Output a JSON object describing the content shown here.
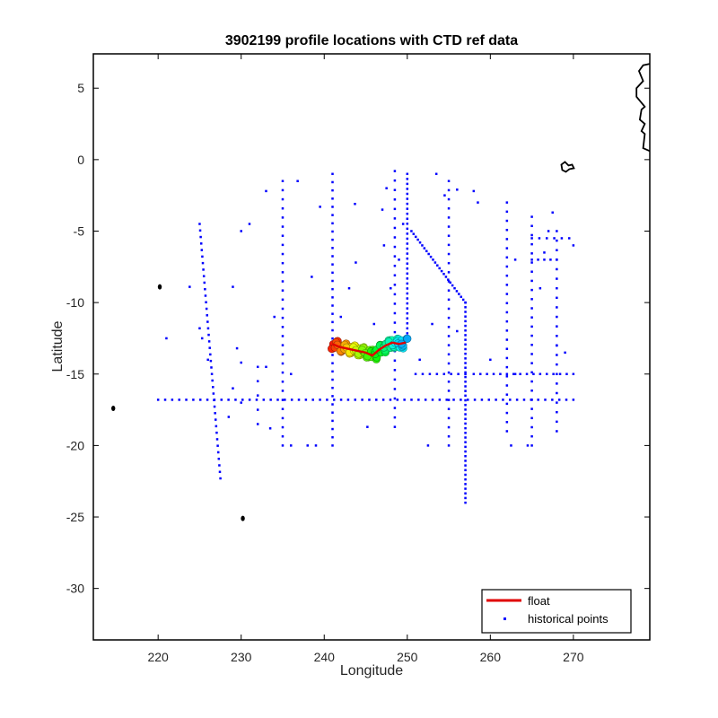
{
  "chart_data": {
    "type": "scatter",
    "title": "3902199 profile locations with CTD ref data",
    "xlabel": "Longitude",
    "ylabel": "Latitude",
    "xlim": [
      212.2,
      279.2
    ],
    "ylim": [
      -33.6,
      7.4
    ],
    "xticks": [
      220,
      230,
      240,
      250,
      260,
      270
    ],
    "yticks": [
      5,
      0,
      -5,
      -10,
      -15,
      -20,
      -25,
      -30
    ],
    "grid": false,
    "legend": {
      "placement": "bottom-right",
      "entries": [
        {
          "label": "float",
          "color": "#e00000",
          "marker": "line"
        },
        {
          "label": "historical points",
          "color": "#0000ff",
          "marker": "dot"
        }
      ]
    },
    "colors": {
      "float_track": "#e00000",
      "historical": "#0000ff",
      "coast": "#000000"
    },
    "series": [
      {
        "name": "historical points",
        "lines": [
          {
            "from": [
              220,
              -16.8
            ],
            "to": [
              270,
              -16.8
            ],
            "n": 60
          },
          {
            "from": [
              225,
              -4.5
            ],
            "to": [
              227.5,
              -22.3
            ],
            "n": 40
          },
          {
            "from": [
              235,
              -1.5
            ],
            "to": [
              235,
              -20
            ],
            "n": 30
          },
          {
            "from": [
              241,
              -1
            ],
            "to": [
              241,
              -20
            ],
            "n": 34
          },
          {
            "from": [
              248.5,
              -0.8
            ],
            "to": [
              248.5,
              -18.7
            ],
            "n": 28
          },
          {
            "from": [
              250,
              -1
            ],
            "to": [
              250,
              -12.5
            ],
            "n": 34
          },
          {
            "from": [
              250.5,
              -5
            ],
            "to": [
              257,
              -10
            ],
            "n": 26
          },
          {
            "from": [
              257,
              -10
            ],
            "to": [
              257,
              -24
            ],
            "n": 44
          },
          {
            "from": [
              255,
              -1.5
            ],
            "to": [
              255,
              -20
            ],
            "n": 30
          },
          {
            "from": [
              262,
              -3
            ],
            "to": [
              262,
              -19
            ],
            "n": 26
          },
          {
            "from": [
              265,
              -4
            ],
            "to": [
              265,
              -20
            ],
            "n": 26
          },
          {
            "from": [
              268,
              -5
            ],
            "to": [
              268,
              -19
            ],
            "n": 22
          },
          {
            "from": [
              258,
              -15
            ],
            "to": [
              270,
              -15
            ],
            "n": 16
          },
          {
            "from": [
              251,
              -15
            ],
            "to": [
              257,
              -15
            ],
            "n": 8
          },
          {
            "from": [
              232,
              -14.5
            ],
            "to": [
              232,
              -18.5
            ],
            "n": 5
          },
          {
            "from": [
              265,
              -7
            ],
            "to": [
              268,
              -7
            ],
            "n": 5
          },
          {
            "from": [
              265,
              -5.5
            ],
            "to": [
              269.5,
              -5.5
            ],
            "n": 6
          }
        ],
        "points": [
          [
            223.8,
            -8.9
          ],
          [
            221,
            -12.5
          ],
          [
            229,
            -8.9
          ],
          [
            230,
            -5
          ],
          [
            229.5,
            -13.2
          ],
          [
            229,
            -16
          ],
          [
            230,
            -14.2
          ],
          [
            230,
            -17
          ],
          [
            228.5,
            -18
          ],
          [
            233,
            -2.2
          ],
          [
            233,
            -14.5
          ],
          [
            233.5,
            -18.8
          ],
          [
            236,
            -15
          ],
          [
            236,
            -20
          ],
          [
            238,
            -20
          ],
          [
            239,
            -20
          ],
          [
            236.8,
            -1.5
          ],
          [
            238.5,
            -8.2
          ],
          [
            243.8,
            -7.2
          ],
          [
            243.7,
            -3.1
          ],
          [
            245.2,
            -18.7
          ],
          [
            247.5,
            -2
          ],
          [
            247,
            -3.5
          ],
          [
            247.2,
            -6
          ],
          [
            249.5,
            -4.5
          ],
          [
            249,
            -7
          ],
          [
            248,
            -9
          ],
          [
            252.5,
            -20
          ],
          [
            251.5,
            -14
          ],
          [
            253.5,
            -1
          ],
          [
            254.5,
            -2.5
          ],
          [
            256,
            -2.1
          ],
          [
            256,
            -12
          ],
          [
            258,
            -2.2
          ],
          [
            258.5,
            -3
          ],
          [
            260,
            -14
          ],
          [
            263,
            -7
          ],
          [
            263,
            -15
          ],
          [
            266,
            -9
          ],
          [
            266.5,
            -6.5
          ],
          [
            267,
            -5
          ],
          [
            270,
            -6
          ],
          [
            268,
            -13
          ],
          [
            269,
            -13.5
          ],
          [
            262.5,
            -20
          ],
          [
            264.5,
            -20
          ],
          [
            225,
            -11.8
          ],
          [
            225.3,
            -12.5
          ],
          [
            226,
            -14
          ],
          [
            242,
            -11
          ],
          [
            243,
            -9
          ],
          [
            246,
            -11.5
          ],
          [
            253,
            -11.5
          ],
          [
            234,
            -11
          ],
          [
            231,
            -4.5
          ],
          [
            239.5,
            -3.3
          ],
          [
            267.5,
            -3.7
          ]
        ]
      },
      {
        "name": "float",
        "track": [
          [
            241.0,
            -12.9
          ],
          [
            241.8,
            -13.1
          ],
          [
            242.6,
            -13.2
          ],
          [
            243.4,
            -13.3
          ],
          [
            244.2,
            -13.4
          ],
          [
            245.0,
            -13.5
          ],
          [
            245.8,
            -13.7
          ],
          [
            246.6,
            -13.3
          ],
          [
            247.4,
            -13.0
          ],
          [
            248.2,
            -12.8
          ],
          [
            249.0,
            -12.9
          ],
          [
            249.8,
            -12.8
          ]
        ]
      }
    ],
    "coast_patches": [
      {
        "type": "blob",
        "at": [
          214.6,
          -17.4
        ]
      },
      {
        "type": "blob",
        "at": [
          220.2,
          -8.9
        ]
      },
      {
        "type": "blob",
        "at": [
          230.2,
          -25.1
        ]
      },
      {
        "type": "island",
        "at": [
          269.2,
          -0.6
        ]
      },
      {
        "type": "coastline",
        "points": [
          [
            279.2,
            0.6
          ],
          [
            278.4,
            0.8
          ],
          [
            278.6,
            1.8
          ],
          [
            278.2,
            2.0
          ],
          [
            278.6,
            2.5
          ],
          [
            278.0,
            2.8
          ],
          [
            278.2,
            3.5
          ],
          [
            278.6,
            3.7
          ],
          [
            277.6,
            4.4
          ],
          [
            277.6,
            5.0
          ],
          [
            278.4,
            5.5
          ],
          [
            277.9,
            6.2
          ],
          [
            278.4,
            6.6
          ],
          [
            279.2,
            6.7
          ]
        ]
      }
    ]
  }
}
